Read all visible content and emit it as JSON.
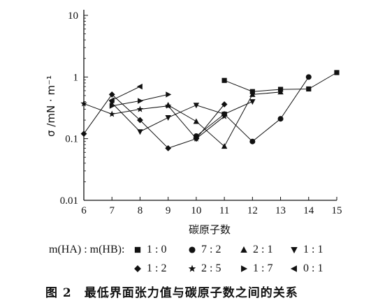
{
  "chart_data": {
    "type": "line",
    "title": "",
    "xlabel": "碳原子数",
    "ylabel": "σ /mN · m⁻¹",
    "xlim": [
      6,
      15
    ],
    "ylim": [
      0.01,
      10
    ],
    "yscale": "log",
    "x_ticks": [
      "6",
      "7",
      "8",
      "9",
      "10",
      "11",
      "12",
      "13",
      "14",
      "15"
    ],
    "y_ticks": [
      "0.01",
      "0.1",
      "1",
      "10"
    ],
    "legend_title": "m(HA) : m(HB):",
    "series": [
      {
        "name": "1 : 0",
        "marker": "square",
        "x": [
          11,
          12,
          13,
          14,
          15
        ],
        "y": [
          0.88,
          0.58,
          0.63,
          0.64,
          1.18
        ]
      },
      {
        "name": "7 : 2",
        "marker": "circle",
        "x": [
          10,
          11,
          12,
          13,
          14
        ],
        "y": [
          0.11,
          0.25,
          0.09,
          0.21,
          1.0
        ]
      },
      {
        "name": "2 : 1",
        "marker": "triangle-up",
        "x": [
          9,
          10,
          11,
          12,
          13
        ],
        "y": [
          0.35,
          0.19,
          0.075,
          0.52,
          0.57
        ]
      },
      {
        "name": "1 : 1",
        "marker": "triangle-down",
        "x": [
          7,
          8,
          9,
          10,
          11,
          12
        ],
        "y": [
          0.38,
          0.13,
          0.22,
          0.35,
          0.25,
          0.4
        ]
      },
      {
        "name": "1 : 2",
        "marker": "diamond",
        "x": [
          6,
          7,
          8,
          9,
          10,
          11
        ],
        "y": [
          0.12,
          0.52,
          0.2,
          0.07,
          0.1,
          0.36
        ]
      },
      {
        "name": "2 : 5",
        "marker": "star",
        "x": [
          6,
          7,
          8,
          9,
          10,
          11
        ],
        "y": [
          0.37,
          0.25,
          0.3,
          0.34,
          0.1,
          0.23
        ]
      },
      {
        "name": "1 : 7",
        "marker": "triangle-right",
        "x": [
          7,
          8,
          9
        ],
        "y": [
          0.34,
          0.41,
          0.52
        ]
      },
      {
        "name": "0 : 1",
        "marker": "triangle-left",
        "x": [
          7,
          8
        ],
        "y": [
          0.42,
          0.7
        ]
      }
    ]
  },
  "caption": {
    "label": "图 2",
    "text": "最低界面张力值与碳原子数之间的关系"
  }
}
